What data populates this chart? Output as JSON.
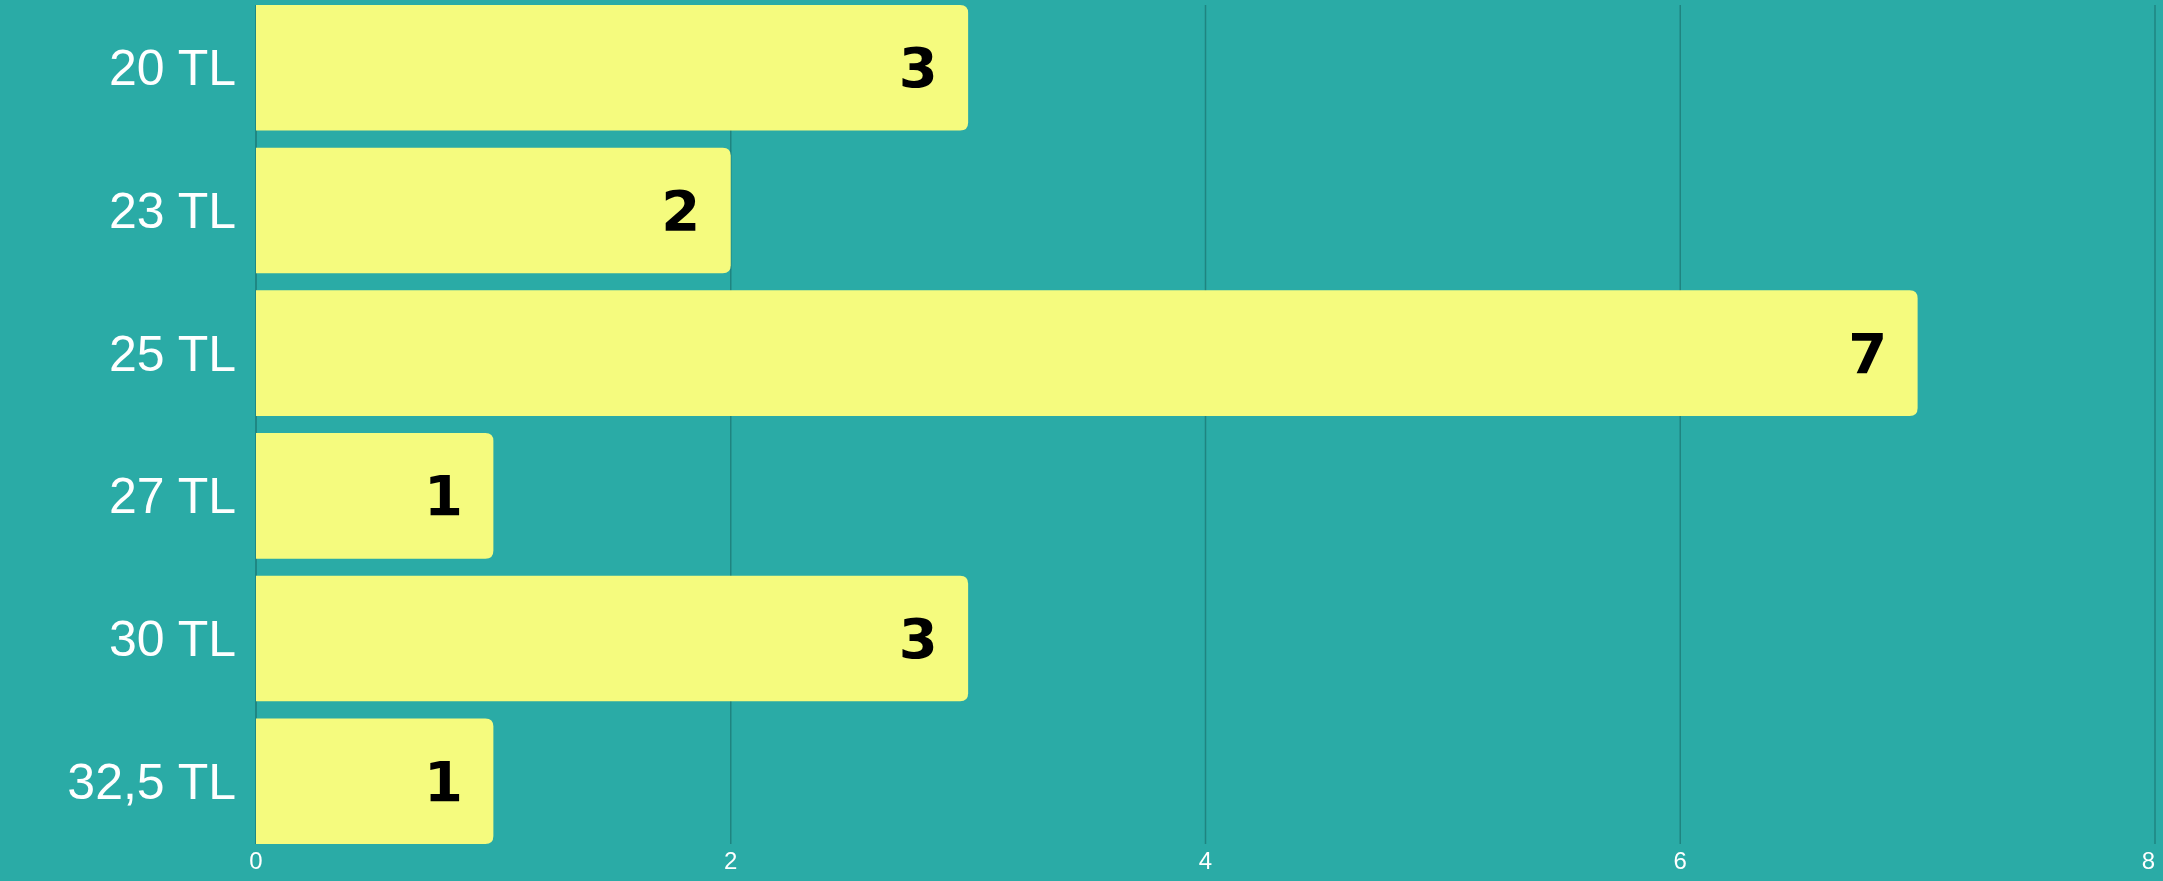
{
  "chart_data": {
    "type": "bar",
    "orientation": "horizontal",
    "categories": [
      "20 TL",
      "23 TL",
      "25 TL",
      "27 TL",
      "30 TL",
      "32,5 TL"
    ],
    "values": [
      3,
      2,
      7,
      1,
      3,
      1
    ],
    "color": "#f5fb7e",
    "xlim": [
      0,
      8
    ],
    "xticks": [
      0,
      2,
      4,
      6,
      8
    ],
    "grid": "x",
    "data_labels": true
  }
}
